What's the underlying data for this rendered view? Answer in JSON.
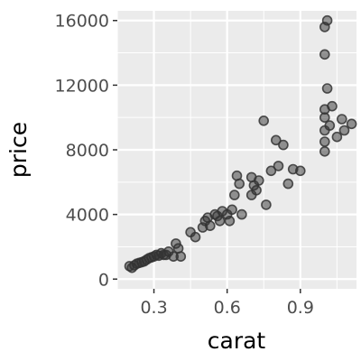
{
  "chart_data": {
    "type": "scatter",
    "title": "",
    "xlabel": "carat",
    "ylabel": "price",
    "xlim": [
      0.15,
      1.13
    ],
    "ylim": [
      -600,
      16600
    ],
    "x_ticks": [
      0.3,
      0.6,
      0.9
    ],
    "x_tick_labels": [
      "0.3",
      "0.6",
      "0.9"
    ],
    "y_ticks": [
      0,
      4000,
      8000,
      12000,
      16000
    ],
    "y_tick_labels": [
      "0",
      "4000",
      "8000",
      "12000",
      "16000"
    ],
    "x_minor": [
      0.15,
      0.45,
      0.75,
      1.05
    ],
    "y_minor": [
      2000,
      6000,
      10000,
      14000
    ],
    "grid": true,
    "panel_background": "#ebebeb",
    "grid_color": "#ffffff",
    "point_color": "#333333",
    "points": [
      [
        0.2,
        800
      ],
      [
        0.21,
        700
      ],
      [
        0.22,
        850
      ],
      [
        0.23,
        950
      ],
      [
        0.24,
        1000
      ],
      [
        0.25,
        1050
      ],
      [
        0.26,
        1100
      ],
      [
        0.27,
        1200
      ],
      [
        0.28,
        1300
      ],
      [
        0.29,
        1350
      ],
      [
        0.3,
        1400
      ],
      [
        0.31,
        1500
      ],
      [
        0.32,
        1450
      ],
      [
        0.33,
        1600
      ],
      [
        0.34,
        1500
      ],
      [
        0.35,
        1500
      ],
      [
        0.36,
        1700
      ],
      [
        0.38,
        1400
      ],
      [
        0.39,
        2200
      ],
      [
        0.4,
        1900
      ],
      [
        0.41,
        1400
      ],
      [
        0.45,
        2900
      ],
      [
        0.47,
        2600
      ],
      [
        0.5,
        3200
      ],
      [
        0.51,
        3600
      ],
      [
        0.52,
        3800
      ],
      [
        0.53,
        3300
      ],
      [
        0.55,
        4000
      ],
      [
        0.56,
        3900
      ],
      [
        0.57,
        3600
      ],
      [
        0.58,
        4200
      ],
      [
        0.6,
        4000
      ],
      [
        0.61,
        3600
      ],
      [
        0.62,
        4300
      ],
      [
        0.63,
        5200
      ],
      [
        0.64,
        6400
      ],
      [
        0.65,
        5900
      ],
      [
        0.66,
        4000
      ],
      [
        0.7,
        5200
      ],
      [
        0.7,
        6300
      ],
      [
        0.71,
        5800
      ],
      [
        0.72,
        5500
      ],
      [
        0.73,
        6100
      ],
      [
        0.75,
        9800
      ],
      [
        0.76,
        4600
      ],
      [
        0.78,
        6700
      ],
      [
        0.8,
        8600
      ],
      [
        0.81,
        7000
      ],
      [
        0.83,
        8300
      ],
      [
        0.85,
        5900
      ],
      [
        0.87,
        6800
      ],
      [
        0.9,
        6700
      ],
      [
        1.0,
        7900
      ],
      [
        1.0,
        8500
      ],
      [
        1.0,
        9200
      ],
      [
        1.0,
        10000
      ],
      [
        1.0,
        10500
      ],
      [
        1.0,
        13900
      ],
      [
        1.0,
        15600
      ],
      [
        1.01,
        16000
      ],
      [
        1.01,
        11800
      ],
      [
        1.02,
        9500
      ],
      [
        1.03,
        10700
      ],
      [
        1.05,
        8800
      ],
      [
        1.07,
        9900
      ],
      [
        1.08,
        9200
      ],
      [
        1.11,
        9600
      ]
    ]
  }
}
